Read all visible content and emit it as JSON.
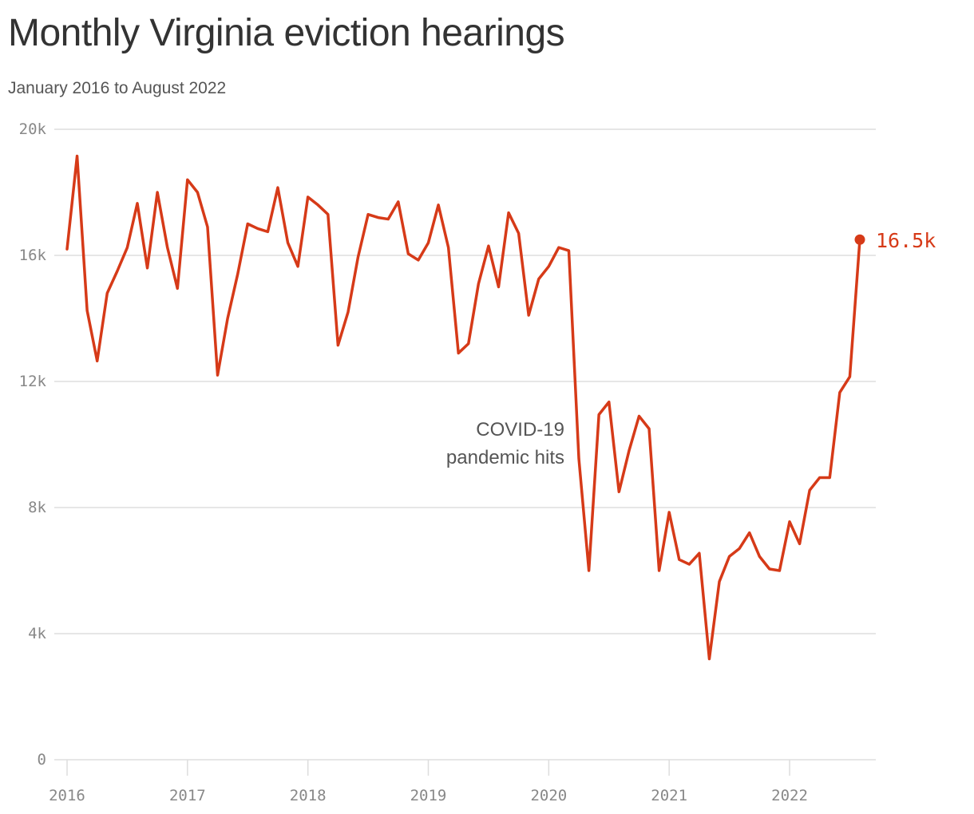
{
  "title": "Monthly Virginia eviction hearings",
  "subtitle": "January 2016 to August 2022",
  "annotation": {
    "line1": "COVID-19",
    "line2": "pandemic hits"
  },
  "end_label": "16.5k",
  "colors": {
    "line": "#d63a18",
    "grid": "#dddddd",
    "tick": "#888888",
    "text": "#333333"
  },
  "chart_data": {
    "type": "line",
    "title": "Monthly Virginia eviction hearings",
    "subtitle": "January 2016 to August 2022",
    "xlabel": "",
    "ylabel": "",
    "ylim": [
      0,
      20000
    ],
    "xlim": [
      "2016-01",
      "2022-08"
    ],
    "grid": true,
    "y_ticks": [
      {
        "value": 0,
        "label": "0"
      },
      {
        "value": 4000,
        "label": "4k"
      },
      {
        "value": 8000,
        "label": "8k"
      },
      {
        "value": 12000,
        "label": "12k"
      },
      {
        "value": 16000,
        "label": "16k"
      },
      {
        "value": 20000,
        "label": "20k"
      }
    ],
    "x_ticks": [
      {
        "value": "2016-01",
        "label": "2016"
      },
      {
        "value": "2017-01",
        "label": "2017"
      },
      {
        "value": "2018-01",
        "label": "2018"
      },
      {
        "value": "2019-01",
        "label": "2019"
      },
      {
        "value": "2020-01",
        "label": "2020"
      },
      {
        "value": "2021-01",
        "label": "2021"
      },
      {
        "value": "2022-01",
        "label": "2022"
      }
    ],
    "series": [
      {
        "x": [
          "2016-01",
          "2016-02",
          "2016-03",
          "2016-04",
          "2016-05",
          "2016-06",
          "2016-07",
          "2016-08",
          "2016-09",
          "2016-10",
          "2016-11",
          "2016-12",
          "2017-01",
          "2017-02",
          "2017-03",
          "2017-04",
          "2017-05",
          "2017-06",
          "2017-07",
          "2017-08",
          "2017-09",
          "2017-10",
          "2017-11",
          "2017-12",
          "2018-01",
          "2018-02",
          "2018-03",
          "2018-04",
          "2018-05",
          "2018-06",
          "2018-07",
          "2018-08",
          "2018-09",
          "2018-10",
          "2018-11",
          "2018-12",
          "2019-01",
          "2019-02",
          "2019-03",
          "2019-04",
          "2019-05",
          "2019-06",
          "2019-07",
          "2019-08",
          "2019-09",
          "2019-10",
          "2019-11",
          "2019-12",
          "2020-01",
          "2020-02",
          "2020-03",
          "2020-04",
          "2020-05",
          "2020-06",
          "2020-07",
          "2020-08",
          "2020-09",
          "2020-10",
          "2020-11",
          "2020-12",
          "2021-01",
          "2021-02",
          "2021-03",
          "2021-04",
          "2021-05",
          "2021-06",
          "2021-07",
          "2021-08",
          "2021-09",
          "2021-10",
          "2021-11",
          "2021-12",
          "2022-01",
          "2022-02",
          "2022-03",
          "2022-04",
          "2022-05",
          "2022-06",
          "2022-07",
          "2022-08"
        ],
        "values": [
          16200,
          19150,
          14250,
          12650,
          14800,
          15500,
          16250,
          17650,
          15600,
          18000,
          16250,
          14950,
          18400,
          18000,
          16900,
          12200,
          14000,
          15400,
          17000,
          16850,
          16750,
          18150,
          16400,
          15650,
          17850,
          17600,
          17300,
          13150,
          14200,
          15950,
          17300,
          17200,
          17150,
          17700,
          16050,
          15850,
          16400,
          17600,
          16250,
          12900,
          13200,
          15100,
          16300,
          15000,
          17350,
          16700,
          14100,
          15250,
          15650,
          16250,
          16150,
          9550,
          6000,
          10950,
          11350,
          8500,
          9800,
          10900,
          10500,
          6000,
          7850,
          6350,
          6200,
          6550,
          3200,
          5650,
          6450,
          6700,
          7200,
          6450,
          6050,
          6000,
          7550,
          6850,
          8550,
          8950,
          8950,
          11650,
          12150,
          16500
        ]
      }
    ]
  }
}
